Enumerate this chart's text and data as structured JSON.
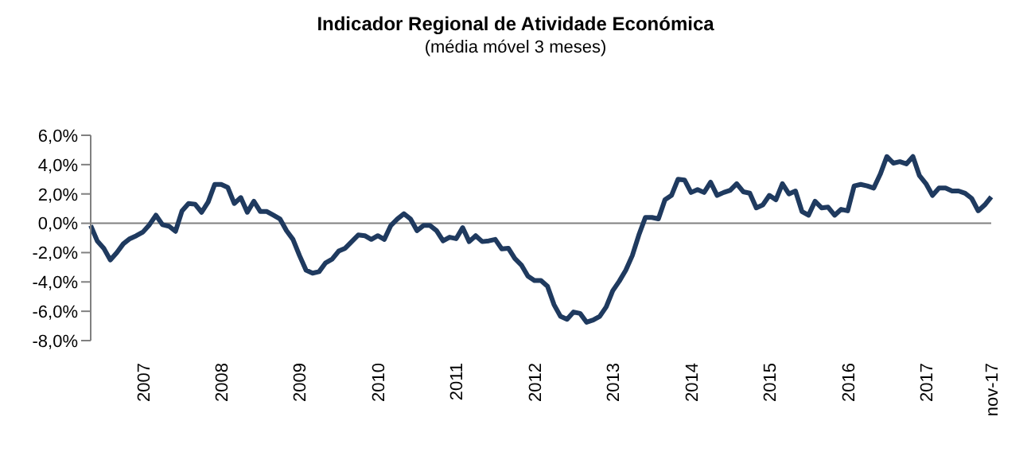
{
  "chart_data": {
    "type": "line",
    "title": "Indicador Regional de Atividade Económica",
    "subtitle": "(média móvel 3 meses)",
    "categories": [
      null,
      null,
      null,
      null,
      null,
      null,
      null,
      null,
      "2007",
      null,
      null,
      null,
      null,
      null,
      null,
      null,
      null,
      null,
      null,
      null,
      "2008",
      null,
      null,
      null,
      null,
      null,
      null,
      null,
      null,
      null,
      null,
      null,
      "2009",
      null,
      null,
      null,
      null,
      null,
      null,
      null,
      null,
      null,
      null,
      null,
      "2010",
      null,
      null,
      null,
      null,
      null,
      null,
      null,
      null,
      null,
      null,
      null,
      "2011",
      null,
      null,
      null,
      null,
      null,
      null,
      null,
      null,
      null,
      null,
      null,
      "2012",
      null,
      null,
      null,
      null,
      null,
      null,
      null,
      null,
      null,
      null,
      null,
      "2013",
      null,
      null,
      null,
      null,
      null,
      null,
      null,
      null,
      null,
      null,
      null,
      "2014",
      null,
      null,
      null,
      null,
      null,
      null,
      null,
      null,
      null,
      null,
      null,
      "2015",
      null,
      null,
      null,
      null,
      null,
      null,
      null,
      null,
      null,
      null,
      null,
      "2016",
      null,
      null,
      null,
      null,
      null,
      null,
      null,
      null,
      null,
      null,
      null,
      "2017",
      null,
      null,
      null,
      null,
      null,
      null,
      null,
      null,
      null,
      "nov-17"
    ],
    "series": [
      {
        "color": "#1f3a5f",
        "values": [
          -0.15,
          -1.2,
          -1.7,
          -2.5,
          -2.0,
          -1.4,
          -1.05,
          -0.85,
          -0.6,
          -0.1,
          0.55,
          -0.1,
          -0.2,
          -0.55,
          0.85,
          1.35,
          1.3,
          0.75,
          1.45,
          2.65,
          2.65,
          2.45,
          1.35,
          1.75,
          0.75,
          1.5,
          0.8,
          0.8,
          0.55,
          0.3,
          -0.5,
          -1.1,
          -2.2,
          -3.2,
          -3.4,
          -3.3,
          -2.7,
          -2.45,
          -1.9,
          -1.7,
          -1.25,
          -0.8,
          -0.85,
          -1.1,
          -0.85,
          -1.1,
          -0.15,
          0.3,
          0.65,
          0.3,
          -0.5,
          -0.15,
          -0.15,
          -0.5,
          -1.2,
          -0.95,
          -1.05,
          -0.3,
          -1.25,
          -0.85,
          -1.25,
          -1.2,
          -1.1,
          -1.75,
          -1.7,
          -2.4,
          -2.85,
          -3.6,
          -3.9,
          -3.9,
          -4.3,
          -5.55,
          -6.35,
          -6.55,
          -6.05,
          -6.15,
          -6.75,
          -6.6,
          -6.35,
          -5.7,
          -4.6,
          -3.95,
          -3.2,
          -2.2,
          -0.8,
          0.4,
          0.4,
          0.3,
          1.6,
          1.9,
          3.0,
          2.95,
          2.1,
          2.3,
          2.1,
          2.8,
          1.9,
          2.1,
          2.25,
          2.7,
          2.15,
          2.05,
          1.05,
          1.25,
          1.9,
          1.6,
          2.7,
          2.0,
          2.2,
          0.8,
          0.55,
          1.5,
          1.05,
          1.1,
          0.55,
          0.95,
          0.85,
          2.55,
          2.65,
          2.55,
          2.4,
          3.35,
          4.55,
          4.1,
          4.2,
          4.05,
          4.55,
          3.25,
          2.7,
          1.9,
          2.4,
          2.4,
          2.2,
          2.2,
          2.05,
          1.7,
          0.85,
          1.25,
          1.8
        ]
      }
    ],
    "ylim": [
      -8,
      6
    ],
    "yticks": [
      {
        "value": -8,
        "label": "-8,0%"
      },
      {
        "value": -6,
        "label": "-6,0%"
      },
      {
        "value": -4,
        "label": "-4,0%"
      },
      {
        "value": -2,
        "label": "-2,0%"
      },
      {
        "value": 0,
        "label": "0,0%"
      },
      {
        "value": 2,
        "label": "2,0%"
      },
      {
        "value": 4,
        "label": "4,0%"
      },
      {
        "value": 6,
        "label": "6,0%"
      }
    ],
    "ref_lines": [
      {
        "axis": "y",
        "value": 0,
        "color": "#808080"
      }
    ],
    "grid": false,
    "legend": false,
    "marker": "none",
    "line_style": "solid"
  }
}
